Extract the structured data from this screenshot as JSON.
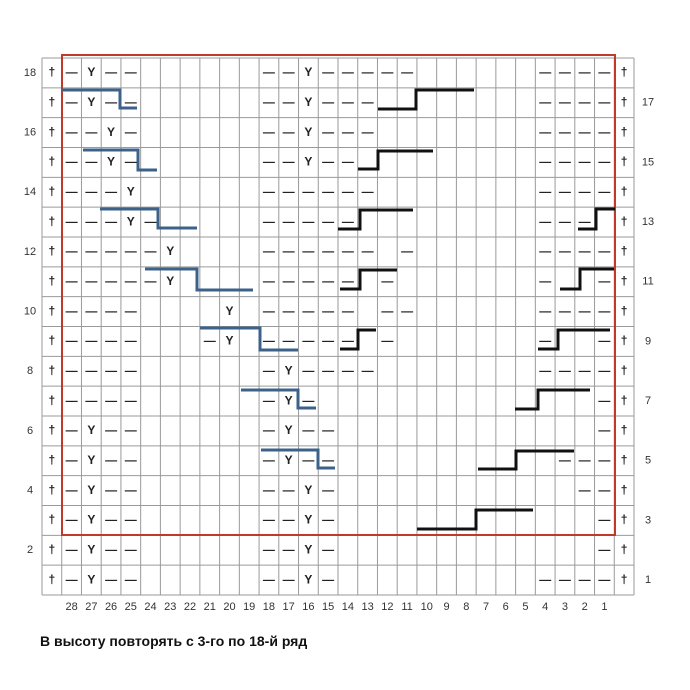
{
  "columns": [
    28,
    27,
    26,
    25,
    24,
    23,
    22,
    21,
    20,
    19,
    18,
    17,
    16,
    15,
    14,
    13,
    12,
    11,
    10,
    9,
    8,
    7,
    6,
    5,
    4,
    3,
    2,
    1
  ],
  "rows": [
    {
      "number": 18,
      "cells": [
        "†",
        "—",
        "Y",
        "—",
        "—",
        null,
        null,
        null,
        null,
        null,
        null,
        "—",
        "—",
        "Y",
        "—",
        "—",
        "—",
        "—",
        "—",
        null,
        null,
        null,
        null,
        null,
        null,
        "—",
        "—",
        "—",
        "—",
        "†"
      ]
    },
    {
      "number": 17,
      "cells": [
        "†",
        "—",
        "Y",
        "—",
        "—",
        null,
        null,
        null,
        null,
        null,
        null,
        "—",
        "—",
        "Y",
        "—",
        "—",
        "—",
        null,
        null,
        null,
        null,
        null,
        null,
        null,
        null,
        "—",
        "—",
        "—",
        "—",
        "†"
      ]
    },
    {
      "number": 16,
      "cells": [
        "†",
        "—",
        "—",
        "Y",
        "—",
        null,
        null,
        null,
        null,
        null,
        null,
        "—",
        "—",
        "Y",
        "—",
        "—",
        "—",
        null,
        null,
        null,
        null,
        null,
        null,
        null,
        null,
        "—",
        "—",
        "—",
        "—",
        "†"
      ]
    },
    {
      "number": 15,
      "cells": [
        "†",
        "—",
        "—",
        "Y",
        "—",
        null,
        null,
        null,
        null,
        null,
        null,
        "—",
        "—",
        "Y",
        "—",
        "—",
        null,
        null,
        null,
        null,
        null,
        null,
        null,
        null,
        null,
        "—",
        "—",
        "—",
        "—",
        "†"
      ]
    },
    {
      "number": 14,
      "cells": [
        "†",
        "—",
        "—",
        "—",
        "Y",
        null,
        null,
        null,
        null,
        null,
        null,
        "—",
        "—",
        "—",
        "—",
        "—",
        "—",
        null,
        null,
        null,
        null,
        null,
        null,
        null,
        null,
        "—",
        "—",
        "—",
        "—",
        "†"
      ]
    },
    {
      "number": 13,
      "cells": [
        "†",
        "—",
        "—",
        "—",
        "Y",
        "—",
        null,
        null,
        null,
        null,
        null,
        "—",
        "—",
        "—",
        "—",
        "—",
        null,
        null,
        null,
        null,
        null,
        null,
        null,
        null,
        null,
        "—",
        "—",
        "—",
        null,
        "†"
      ]
    },
    {
      "number": 12,
      "cells": [
        "†",
        "—",
        "—",
        "—",
        "—",
        "—",
        "Y",
        null,
        null,
        null,
        null,
        "—",
        "—",
        "—",
        "—",
        "—",
        "—",
        null,
        "—",
        null,
        null,
        null,
        null,
        null,
        null,
        "—",
        "—",
        "—",
        "—",
        "†"
      ]
    },
    {
      "number": 11,
      "cells": [
        "†",
        "—",
        "—",
        "—",
        "—",
        "—",
        "Y",
        null,
        null,
        null,
        null,
        "—",
        "—",
        "—",
        "—",
        "—",
        null,
        "—",
        null,
        null,
        null,
        null,
        null,
        null,
        null,
        "—",
        null,
        null,
        "—",
        "†"
      ]
    },
    {
      "number": 10,
      "cells": [
        "†",
        "—",
        "—",
        "—",
        "—",
        null,
        null,
        null,
        null,
        "Y",
        null,
        "—",
        "—",
        "—",
        "—",
        "—",
        null,
        "—",
        "—",
        null,
        null,
        null,
        null,
        null,
        null,
        "—",
        "—",
        "—",
        "—",
        "†"
      ]
    },
    {
      "number": 9,
      "cells": [
        "†",
        "—",
        "—",
        "—",
        "—",
        null,
        null,
        null,
        "—",
        "Y",
        null,
        "—",
        "—",
        "—",
        "—",
        "—",
        null,
        "—",
        null,
        null,
        null,
        null,
        null,
        null,
        null,
        "—",
        null,
        null,
        "—",
        "†"
      ]
    },
    {
      "number": 8,
      "cells": [
        "†",
        "—",
        "—",
        "—",
        "—",
        null,
        null,
        null,
        null,
        null,
        null,
        "—",
        "Y",
        "—",
        "—",
        "—",
        "—",
        null,
        null,
        null,
        null,
        null,
        null,
        null,
        null,
        "—",
        "—",
        "—",
        "—",
        "†"
      ]
    },
    {
      "number": 7,
      "cells": [
        "†",
        "—",
        "—",
        "—",
        "—",
        null,
        null,
        null,
        null,
        null,
        null,
        "—",
        "Y",
        "—",
        null,
        null,
        null,
        null,
        null,
        null,
        null,
        null,
        null,
        null,
        null,
        null,
        null,
        null,
        "—",
        "†"
      ]
    },
    {
      "number": 6,
      "cells": [
        "†",
        "—",
        "Y",
        "—",
        "—",
        null,
        null,
        null,
        null,
        null,
        null,
        "—",
        "Y",
        "—",
        "—",
        null,
        null,
        null,
        null,
        null,
        null,
        null,
        null,
        null,
        null,
        null,
        null,
        null,
        "—",
        "†"
      ]
    },
    {
      "number": 5,
      "cells": [
        "†",
        "—",
        "Y",
        "—",
        "—",
        null,
        null,
        null,
        null,
        null,
        null,
        "—",
        "Y",
        "—",
        "—",
        null,
        null,
        null,
        null,
        null,
        null,
        null,
        null,
        null,
        null,
        null,
        "—",
        "—",
        "—",
        "†"
      ]
    },
    {
      "number": 4,
      "cells": [
        "†",
        "—",
        "Y",
        "—",
        "—",
        null,
        null,
        null,
        null,
        null,
        null,
        "—",
        "—",
        "Y",
        "—",
        null,
        null,
        null,
        null,
        null,
        null,
        null,
        null,
        null,
        null,
        null,
        null,
        "—",
        "—",
        "†"
      ]
    },
    {
      "number": 3,
      "cells": [
        "†",
        "—",
        "Y",
        "—",
        "—",
        null,
        null,
        null,
        null,
        null,
        null,
        "—",
        "—",
        "Y",
        "—",
        null,
        null,
        null,
        null,
        null,
        null,
        null,
        null,
        null,
        null,
        null,
        null,
        null,
        "—",
        "†"
      ]
    },
    {
      "number": 2,
      "cells": [
        "†",
        "—",
        "Y",
        "—",
        "—",
        null,
        null,
        null,
        null,
        null,
        null,
        "—",
        "—",
        "Y",
        "—",
        null,
        null,
        null,
        null,
        null,
        null,
        null,
        null,
        null,
        null,
        null,
        null,
        null,
        "—",
        "†"
      ]
    },
    {
      "number": 1,
      "cells": [
        "†",
        "—",
        "Y",
        "—",
        "—",
        null,
        null,
        null,
        null,
        null,
        null,
        "—",
        "—",
        "Y",
        "—",
        null,
        null,
        null,
        null,
        null,
        null,
        null,
        null,
        null,
        null,
        "—",
        "—",
        "—",
        "—",
        "†"
      ]
    }
  ],
  "footer": "В высоту повторять с 3-го по 18-й ряд"
}
